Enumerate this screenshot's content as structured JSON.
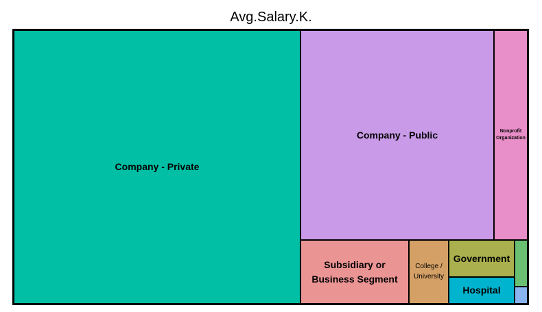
{
  "chart_data": {
    "type": "treemap",
    "title": "Avg.Salary.K.",
    "nodes": [
      {
        "label": "Company - Private",
        "color": "#00BFA5"
      },
      {
        "label": "Company - Public",
        "color": "#C99AE8"
      },
      {
        "label": "Nonprofit Organization",
        "color": "#E88EC8"
      },
      {
        "label": "Subsidiary or Business Segment",
        "color": "#EB9494"
      },
      {
        "label": "College / University",
        "color": "#D4A066"
      },
      {
        "label": "Government",
        "color": "#A9B04D"
      },
      {
        "label": "Hospital",
        "color": "#00B4CF"
      },
      {
        "label": "",
        "color": "#6BBF73"
      },
      {
        "label": "",
        "color": "#8AB4F0"
      }
    ]
  }
}
